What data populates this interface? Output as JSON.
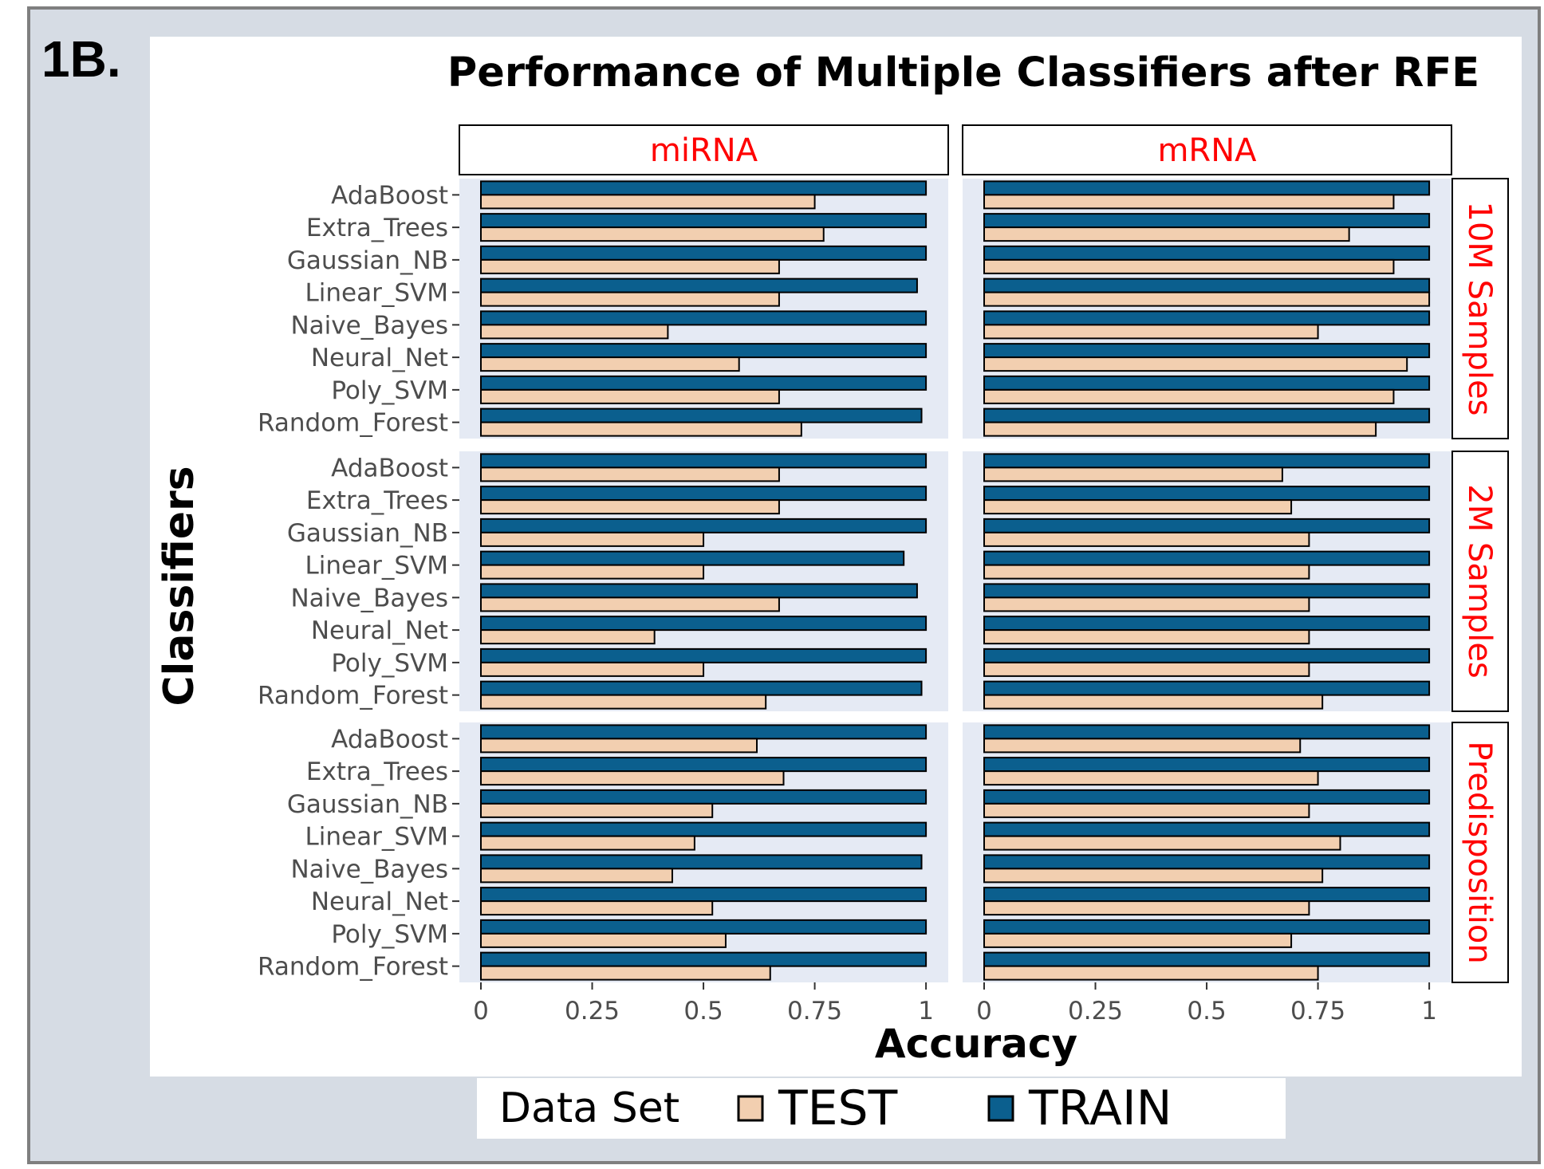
{
  "figure_label": "1B.",
  "chart_data": {
    "type": "bar",
    "orientation": "horizontal",
    "title": "Performance of Multiple Classifiers after RFE",
    "xlabel": "Accuracy",
    "ylabel": "Classifiers",
    "xlim": [
      0,
      1.05
    ],
    "x_ticks": [
      0,
      0.25,
      0.5,
      0.75,
      1
    ],
    "x_tick_labels": [
      "0",
      "0.25",
      "0.5",
      "0.75",
      "1"
    ],
    "facet_columns": [
      "miRNA",
      "mRNA"
    ],
    "facet_rows": [
      "10M Samples",
      "2M Samples",
      "Predisposition"
    ],
    "categories": [
      "AdaBoost",
      "Extra_Trees",
      "Gaussian_NB",
      "Linear_SVM",
      "Naive_Bayes",
      "Neural_Net",
      "Poly_SVM",
      "Random_Forest"
    ],
    "legend": {
      "title": "Data Set",
      "position": "bottom",
      "entries": [
        {
          "name": "TEST",
          "color": "#f2cfb0"
        },
        {
          "name": "TRAIN",
          "color": "#0b5f8e"
        }
      ]
    },
    "panels": [
      {
        "row": "10M Samples",
        "col": "miRNA",
        "train": [
          1.0,
          1.0,
          1.0,
          0.98,
          1.0,
          1.0,
          1.0,
          0.99
        ],
        "test": [
          0.75,
          0.77,
          0.67,
          0.67,
          0.42,
          0.58,
          0.67,
          0.72
        ]
      },
      {
        "row": "10M Samples",
        "col": "mRNA",
        "train": [
          1.0,
          1.0,
          1.0,
          1.0,
          1.0,
          1.0,
          1.0,
          1.0
        ],
        "test": [
          0.92,
          0.82,
          0.92,
          1.0,
          0.75,
          0.95,
          0.92,
          0.88
        ]
      },
      {
        "row": "2M Samples",
        "col": "miRNA",
        "train": [
          1.0,
          1.0,
          1.0,
          0.95,
          0.98,
          1.0,
          1.0,
          0.99
        ],
        "test": [
          0.67,
          0.67,
          0.5,
          0.5,
          0.67,
          0.39,
          0.5,
          0.64
        ]
      },
      {
        "row": "2M Samples",
        "col": "mRNA",
        "train": [
          1.0,
          1.0,
          1.0,
          1.0,
          1.0,
          1.0,
          1.0,
          1.0
        ],
        "test": [
          0.67,
          0.69,
          0.73,
          0.73,
          0.73,
          0.73,
          0.73,
          0.76
        ]
      },
      {
        "row": "Predisposition",
        "col": "miRNA",
        "train": [
          1.0,
          1.0,
          1.0,
          1.0,
          0.99,
          1.0,
          1.0,
          1.0
        ],
        "test": [
          0.62,
          0.68,
          0.52,
          0.48,
          0.43,
          0.52,
          0.55,
          0.65
        ]
      },
      {
        "row": "Predisposition",
        "col": "mRNA",
        "train": [
          1.0,
          1.0,
          1.0,
          1.0,
          1.0,
          1.0,
          1.0,
          1.0
        ],
        "test": [
          0.71,
          0.75,
          0.73,
          0.8,
          0.76,
          0.73,
          0.69,
          0.75
        ]
      }
    ],
    "colors": {
      "panel_background": "#e5eaf4",
      "strip_text": "#ff0000",
      "train_fill": "#0b5f8e",
      "test_fill": "#f2cfb0",
      "bar_outline": "#000000"
    }
  }
}
